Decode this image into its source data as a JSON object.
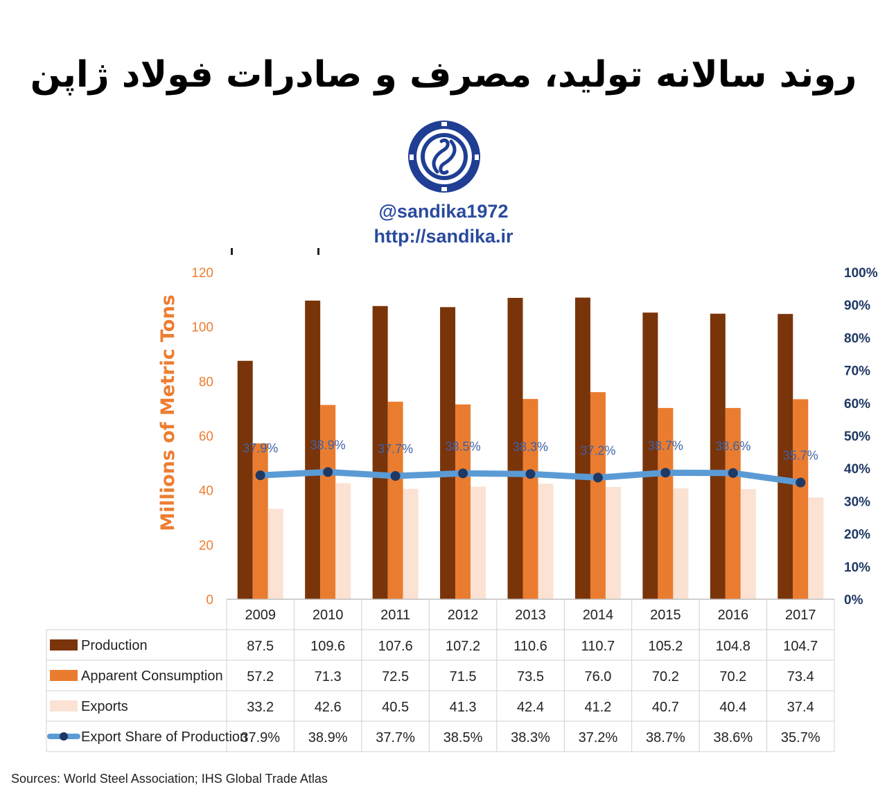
{
  "header": {
    "title": "روند سالانه تولید، مصرف و صادرات فولاد ژاپن",
    "handle": "@sandika1972",
    "url": "http://sandika.ir"
  },
  "logo": {
    "icon": "sandika-gear-logo",
    "color": "#1f3e94"
  },
  "source": "Sources: World Steel Association; IHS Global Trade Atlas",
  "colors": {
    "production": "#7a3409",
    "consumption": "#ea7c2f",
    "exports": "#fbe2d3",
    "share_line": "#5b9bd5",
    "share_marker": "#1f3864",
    "left_axis": "#ed7d31",
    "right_axis": "#1f3864"
  },
  "chart_data": {
    "type": "bar",
    "ylabel": "Millions of Metric Tons",
    "ylim": [
      0,
      120
    ],
    "yticks": [
      "0",
      "20",
      "40",
      "60",
      "80",
      "100",
      "120"
    ],
    "y2lim": [
      0,
      100
    ],
    "y2ticks": [
      "0%",
      "10%",
      "20%",
      "30%",
      "40%",
      "50%",
      "60%",
      "70%",
      "80%",
      "90%",
      "100%"
    ],
    "categories": [
      "2009",
      "2010",
      "2011",
      "2012",
      "2013",
      "2014",
      "2015",
      "2016",
      "2017"
    ],
    "series": [
      {
        "name": "Production",
        "kind": "bar",
        "values": [
          87.5,
          109.6,
          107.6,
          107.2,
          110.6,
          110.7,
          105.2,
          104.8,
          104.7
        ],
        "labels": [
          "87.5",
          "109.6",
          "107.6",
          "107.2",
          "110.6",
          "110.7",
          "105.2",
          "104.8",
          "104.7"
        ]
      },
      {
        "name": "Apparent Consumption",
        "kind": "bar",
        "values": [
          57.2,
          71.3,
          72.5,
          71.5,
          73.5,
          76.0,
          70.2,
          70.2,
          73.4
        ],
        "labels": [
          "57.2",
          "71.3",
          "72.5",
          "71.5",
          "73.5",
          "76.0",
          "70.2",
          "70.2",
          "73.4"
        ]
      },
      {
        "name": "Exports",
        "kind": "bar",
        "values": [
          33.2,
          42.6,
          40.5,
          41.3,
          42.4,
          41.2,
          40.7,
          40.4,
          37.4
        ],
        "labels": [
          "33.2",
          "42.6",
          "40.5",
          "41.3",
          "42.4",
          "41.2",
          "40.7",
          "40.4",
          "37.4"
        ]
      },
      {
        "name": "Export Share of Production",
        "kind": "line",
        "axis": "right",
        "values": [
          37.9,
          38.9,
          37.7,
          38.5,
          38.3,
          37.2,
          38.7,
          38.6,
          35.7
        ],
        "labels": [
          "37.9%",
          "38.9%",
          "37.7%",
          "38.5%",
          "38.3%",
          "37.2%",
          "38.7%",
          "38.6%",
          "35.7%"
        ]
      }
    ],
    "grid": false,
    "legend": "table-below"
  }
}
